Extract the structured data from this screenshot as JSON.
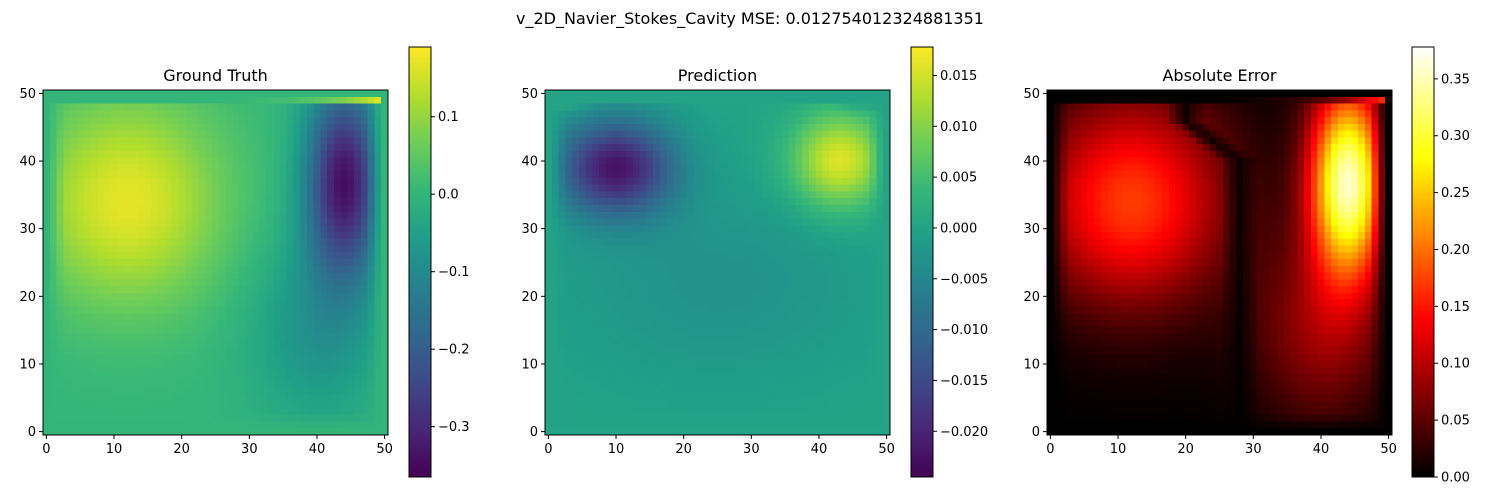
{
  "figure": {
    "suptitle": "v_2D_Navier_Stokes_Cavity MSE: 0.012754012324881351"
  },
  "chart_data": [
    {
      "type": "heatmap",
      "title": "Ground Truth",
      "xlabel": "",
      "ylabel": "",
      "grid_size": 51,
      "xlim": [
        0,
        50
      ],
      "ylim": [
        0,
        50
      ],
      "xticks": [
        "0",
        "10",
        "20",
        "30",
        "40",
        "50"
      ],
      "yticks": [
        "0",
        "10",
        "20",
        "30",
        "40",
        "50"
      ],
      "origin": "lower",
      "grid": false,
      "colormap": "viridis",
      "colorbar": {
        "vmin": -0.365,
        "vmax": 0.19,
        "ticks": [
          0.1,
          0.0,
          -0.1,
          -0.2,
          -0.3
        ],
        "tick_labels": [
          "0.1",
          "0.0",
          "−0.1",
          "−0.2",
          "−0.3"
        ]
      },
      "field": {
        "background": 0.0,
        "lid_value": 0.18,
        "blobs": [
          {
            "x": 12,
            "y": 34,
            "sx": 10,
            "sy": 11,
            "amp": 0.17
          },
          {
            "x": 44,
            "y": 37,
            "sx": 4,
            "sy": 10,
            "amp": -0.34
          },
          {
            "x": 40,
            "y": 15,
            "sx": 7,
            "sy": 10,
            "amp": -0.08
          }
        ]
      }
    },
    {
      "type": "heatmap",
      "title": "Prediction",
      "xlabel": "",
      "ylabel": "",
      "grid_size": 51,
      "xlim": [
        0,
        50
      ],
      "ylim": [
        0,
        50
      ],
      "xticks": [
        "0",
        "10",
        "20",
        "30",
        "40",
        "50"
      ],
      "yticks": [
        "0",
        "10",
        "20",
        "30",
        "40",
        "50"
      ],
      "origin": "lower",
      "grid": false,
      "colormap": "viridis",
      "colorbar": {
        "vmin": -0.0245,
        "vmax": 0.0178,
        "ticks": [
          0.015,
          0.01,
          0.005,
          0.0,
          -0.005,
          -0.01,
          -0.015,
          -0.02
        ],
        "tick_labels": [
          "0.015",
          "0.010",
          "0.005",
          "0.000",
          "−0.005",
          "−0.010",
          "−0.015",
          "−0.020"
        ]
      },
      "field": {
        "background": 0.0,
        "lid_value": 0.0,
        "blobs": [
          {
            "x": 10,
            "y": 39,
            "sx": 6,
            "sy": 5,
            "amp": -0.022
          },
          {
            "x": 43,
            "y": 40,
            "sx": 5,
            "sy": 5,
            "amp": 0.016
          },
          {
            "x": 25,
            "y": 22,
            "sx": 16,
            "sy": 10,
            "amp": -0.003
          },
          {
            "x": 3,
            "y": 49,
            "sx": 2,
            "sy": 1,
            "amp": 0.004
          },
          {
            "x": 46,
            "y": 49,
            "sx": 2,
            "sy": 1,
            "amp": -0.004
          }
        ]
      }
    },
    {
      "type": "heatmap",
      "title": "Absolute Error",
      "xlabel": "",
      "ylabel": "",
      "grid_size": 51,
      "xlim": [
        0,
        50
      ],
      "ylim": [
        0,
        50
      ],
      "xticks": [
        "0",
        "10",
        "20",
        "30",
        "40",
        "50"
      ],
      "yticks": [
        "0",
        "10",
        "20",
        "30",
        "40",
        "50"
      ],
      "origin": "lower",
      "grid": false,
      "colormap": "hot",
      "colorbar": {
        "vmin": 0.0,
        "vmax": 0.378,
        "ticks": [
          0.35,
          0.3,
          0.25,
          0.2,
          0.15,
          0.1,
          0.05,
          0.0
        ],
        "tick_labels": [
          "0.35",
          "0.30",
          "0.25",
          "0.20",
          "0.15",
          "0.10",
          "0.05",
          "0.00"
        ]
      },
      "field": {
        "background": 0.0,
        "lid_value": 0.18,
        "blobs": [
          {
            "x": 12,
            "y": 34,
            "sx": 10,
            "sy": 11,
            "amp": 0.17
          },
          {
            "x": 44,
            "y": 37,
            "sx": 4,
            "sy": 10,
            "amp": 0.35
          },
          {
            "x": 40,
            "y": 15,
            "sx": 7,
            "sy": 10,
            "amp": 0.08
          }
        ],
        "dark_curve": {
          "x": 28,
          "y_top": 40,
          "bend_to_x": 20,
          "bend_y": 46
        }
      }
    }
  ]
}
